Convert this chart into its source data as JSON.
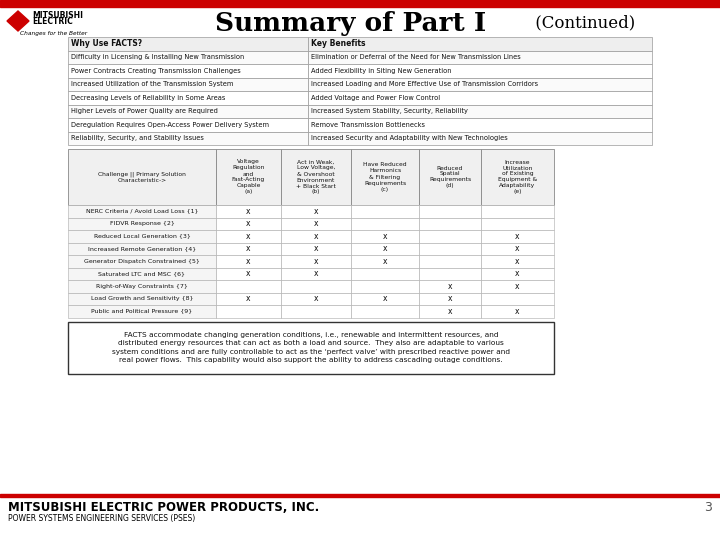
{
  "title_main": "Summary of Part I",
  "title_cont": " (Continued)",
  "bg_color": "#ffffff",
  "header_red": "#cc0000",
  "top_table_headers": [
    "Why Use FACTS?",
    "Key Benefits"
  ],
  "top_table_rows": [
    [
      "Difficulty in Licensing & Installing New Transmission",
      "Elimination or Deferral of the Need for New Transmission Lines"
    ],
    [
      "Power Contracts Creating Transmission Challenges",
      "Added Flexibility in Siting New Generation"
    ],
    [
      "Increased Utilization of the Transmission System",
      "Increased Loading and More Effective Use of Transmission Corridors"
    ],
    [
      "Decreasing Levels of Reliability in Some Areas",
      "Added Voltage and Power Flow Control"
    ],
    [
      "Higher Levels of Power Quality are Required",
      "Increased System Stability, Security, Reliability"
    ],
    [
      "Deregulation Requires Open-Access Power Delivery System",
      "Remove Transmission Bottlenecks"
    ],
    [
      "Reliability, Security, and Stability Issues",
      "Increased Security and Adaptability with New Technologies"
    ]
  ],
  "bottom_table_col_headers": [
    "Challenge || Primary Solution\nCharacteristic->",
    "Voltage\nRegulation\nand\nFast-Acting\nCapable\n(a)",
    "Act in Weak,\nLow Voltage,\n& Overshoot\nEnvironment\n+ Black Start\n(b)",
    "Have Reduced\nHarmonics\n& Filtering\nRequirements\n(c)",
    "Reduced\nSpatial\nRequirements\n(d)",
    "Increase\nUtilization\nof Existing\nEquipment &\nAdaptability\n(e)"
  ],
  "bottom_table_rows": [
    [
      "NERC Criteria / Avoid Load Loss {1}",
      "x",
      "x",
      "",
      "",
      ""
    ],
    [
      "FIDVR Response {2}",
      "x",
      "x",
      "",
      "",
      ""
    ],
    [
      "Reduced Local Generation {3}",
      "x",
      "x",
      "x",
      "",
      "x"
    ],
    [
      "Increased Remote Generation {4}",
      "x",
      "x",
      "x",
      "",
      "x"
    ],
    [
      "Generator Dispatch Constrained {5}",
      "x",
      "x",
      "x",
      "",
      "x"
    ],
    [
      "Saturated LTC and MSC {6}",
      "x",
      "x",
      "",
      "",
      "x"
    ],
    [
      "Right-of-Way Constraints {7}",
      "",
      "",
      "",
      "x",
      "x"
    ],
    [
      "Load Growth and Sensitivity {8}",
      "x",
      "x",
      "x",
      "x",
      ""
    ],
    [
      "Public and Political Pressure {9}",
      "",
      "",
      "",
      "x",
      "x"
    ]
  ],
  "note_text": "FACTS accommodate changing generation conditions, i.e., renewable and intermittent resources, and\ndistributed energy resources that can act as both a load and source.  They also are adaptable to various\nsystem conditions and are fully controllable to act as the ‘perfect valve’ with prescribed reactive power and\nreal power flows.  This capability would also support the ability to address cascading outage conditions.",
  "footer_company": "MITSUBISHI ELECTRIC POWER PRODUCTS, INC.",
  "footer_sub": "POWER SYSTEMS ENGINEERING SERVICES (PSES)",
  "page_num": "3"
}
